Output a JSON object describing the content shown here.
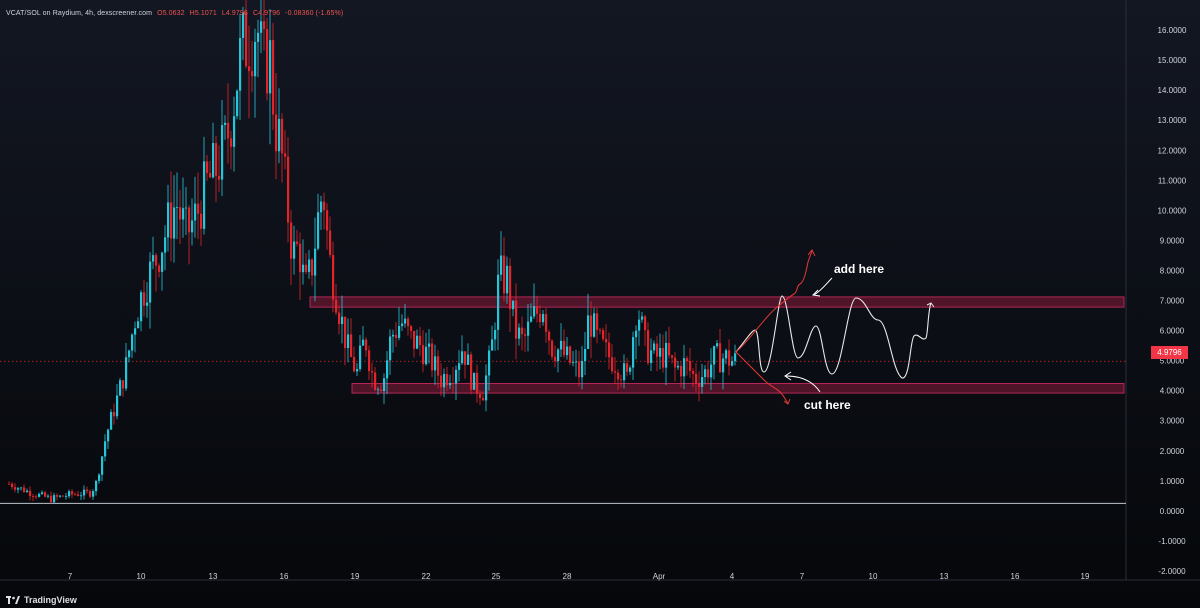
{
  "header": {
    "symbol": "VCAT/SOL on Raydium, 4h, dexscreener.com",
    "open": "O5.0632",
    "high": "H5.1071",
    "low": "L4.9796",
    "close": "C4.9796",
    "change": "-0.08360 (-1.65%)"
  },
  "footer": {
    "brand": "TradingView"
  },
  "last_price": "4.9796",
  "annotations": {
    "add_label": "add here",
    "cut_label": "cut here"
  },
  "colors": {
    "up": "#26c6da",
    "down": "#e3252b",
    "zone": "#8a1c3c",
    "arrow": "#e53935"
  },
  "chart_data": {
    "type": "candlestick",
    "ylim": [
      -2.3,
      16.9
    ],
    "y_ticks": [
      "16.0000",
      "15.0000",
      "14.0000",
      "13.0000",
      "12.0000",
      "11.0000",
      "10.0000",
      "9.0000",
      "8.0000",
      "7.0000",
      "6.0000",
      "5.0000",
      "4.0000",
      "3.0000",
      "2.0000",
      "1.0000",
      "0.0000",
      "-1.0000",
      "-2.0000"
    ],
    "x_ticks": [
      "7",
      "10",
      "13",
      "16",
      "19",
      "22",
      "25",
      "28",
      "Apr",
      "4",
      "7",
      "10",
      "13",
      "16",
      "19"
    ],
    "zones": [
      {
        "role": "resistance",
        "low": 6.78,
        "high": 7.12
      },
      {
        "role": "support",
        "low": 3.92,
        "high": 4.24
      }
    ],
    "series_close": [
      0.4,
      0.6,
      0.7,
      2.5,
      4.0,
      6.3,
      8.3,
      10.2,
      12.3,
      14.7,
      16.2,
      15.8,
      13.6,
      10.7,
      9.3,
      6.2,
      5.5,
      4.6,
      5.5,
      4.7,
      4.2,
      5.2,
      7.9,
      5.3,
      6.2,
      5.8,
      4.8,
      5.3,
      6.8,
      5.2,
      4.4,
      4.7,
      4.98
    ],
    "projection": "oscillation between 4.1 and 7.0 through Apr 12"
  }
}
